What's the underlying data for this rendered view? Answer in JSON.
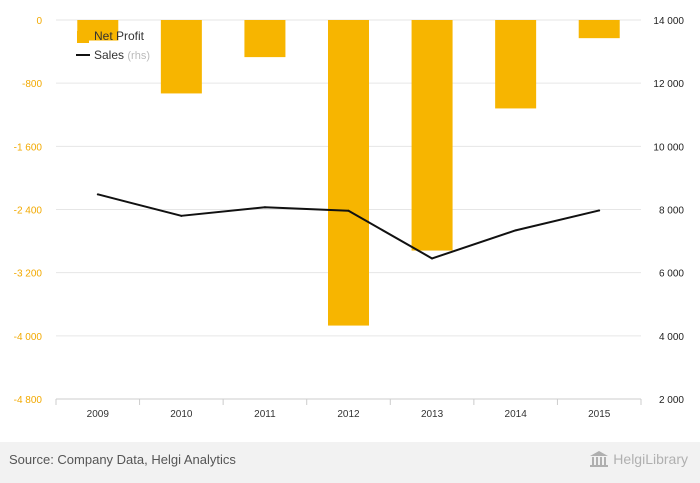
{
  "chart_data": {
    "type": "bar+line",
    "categories": [
      "2009",
      "2010",
      "2011",
      "2012",
      "2013",
      "2014",
      "2015"
    ],
    "series": [
      {
        "name": "Net Profit",
        "type": "bar",
        "axis": "left",
        "color": "#f7b500",
        "values": [
          -260,
          -930,
          -470,
          -3870,
          -2920,
          -1120,
          -230
        ]
      },
      {
        "name": "Sales",
        "type": "line",
        "axis": "right",
        "color": "#111111",
        "values": [
          8480,
          7800,
          8070,
          7960,
          6450,
          7340,
          7970
        ]
      }
    ],
    "legend": [
      {
        "label": "Net Profit",
        "note": ""
      },
      {
        "label": "Sales",
        "note": "(rhs)"
      }
    ],
    "left_axis": {
      "min": -4800,
      "max": 0,
      "ticks": [
        "0",
        "-800",
        "-1 600",
        "-2 400",
        "-3 200",
        "-4 000",
        "-4 800"
      ]
    },
    "right_axis": {
      "min": 2000,
      "max": 14000,
      "ticks": [
        "14 000",
        "12 000",
        "10 000",
        "8 000",
        "6 000",
        "4 000",
        "2 000"
      ]
    },
    "legend_position": "top-left",
    "grid": true
  },
  "footer": {
    "source": "Source: Company Data, Helgi Analytics",
    "brand": "HelgiLibrary"
  }
}
